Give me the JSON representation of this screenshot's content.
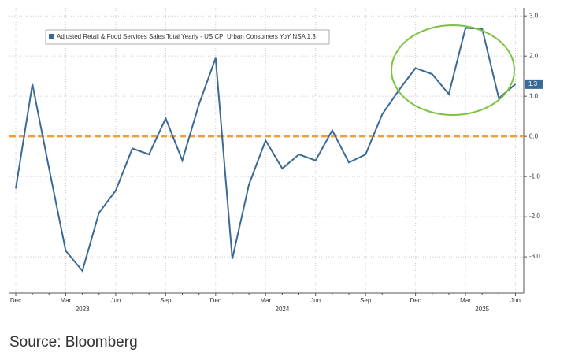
{
  "chart_data": {
    "type": "line",
    "legend": "Adjusted Retail & Food Services Sales Total Yearly - US CPI Urban Consumers YoY NSA 1.3",
    "source": "Source: Bloomberg",
    "categories": [
      "Dec",
      null,
      null,
      "Mar",
      null,
      null,
      "Jun",
      null,
      null,
      "Sep",
      null,
      null,
      "Dec",
      null,
      null,
      "Mar",
      null,
      null,
      "Jun",
      null,
      null,
      "Sep",
      null,
      null,
      "Dec",
      null,
      null,
      "Mar",
      null,
      null,
      "Jun"
    ],
    "year_labels": [
      {
        "index": 4,
        "label": "2023"
      },
      {
        "index": 16,
        "label": "2024"
      },
      {
        "index": 28,
        "label": "2025"
      }
    ],
    "series": [
      {
        "name": "Adjusted Retail & Food Services Sales Total Yearly - US CPI Urban Consumers YoY NSA",
        "color": "#3a6a96",
        "values": [
          -1.3,
          1.3,
          -0.8,
          -2.85,
          -3.35,
          -1.9,
          -1.35,
          -0.3,
          -0.45,
          0.45,
          -0.6,
          0.8,
          1.95,
          -3.05,
          -1.2,
          -0.1,
          -0.8,
          -0.45,
          -0.6,
          0.15,
          -0.65,
          -0.45,
          0.55,
          1.15,
          1.7,
          1.55,
          1.05,
          2.7,
          2.68,
          0.95,
          1.3
        ]
      }
    ],
    "reference_line": {
      "value": 0,
      "color": "#f0a030"
    },
    "ylim": [
      -3.9,
      3.2
    ],
    "yticks": [
      {
        "value": 3,
        "label": "3.0"
      },
      {
        "value": 2,
        "label": "2.0"
      },
      {
        "value": 1,
        "label": "1.0"
      },
      {
        "value": 0,
        "label": "0.0"
      },
      {
        "value": -1,
        "label": "-1.0"
      },
      {
        "value": -2,
        "label": "-2.0"
      },
      {
        "value": -3,
        "label": "-3.0"
      }
    ],
    "grid": true
  }
}
